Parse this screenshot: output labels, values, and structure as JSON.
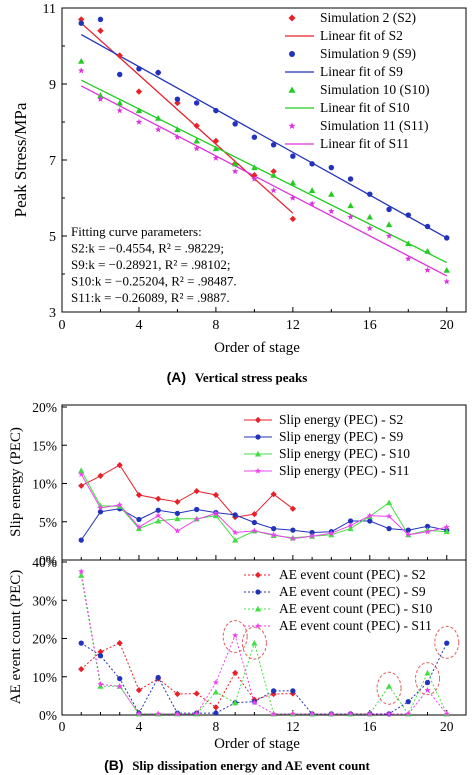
{
  "chart_data": [
    {
      "id": "A",
      "type": "scatter",
      "caption_label": "(A)",
      "caption": "Vertical stress peaks",
      "xlabel": "Order of stage",
      "ylabel": "Peak Stress/MPa",
      "xlim": [
        0,
        21
      ],
      "ylim": [
        3,
        11
      ],
      "xticks": [
        0,
        4,
        8,
        12,
        16,
        20
      ],
      "yticks": [
        3,
        5,
        7,
        9,
        11
      ],
      "legend_position": "top-right",
      "series": [
        {
          "name": "Simulation 2 (S2)",
          "color": "#e8202a",
          "marker": "diamond",
          "x": [
            1,
            2,
            3,
            4,
            5,
            6,
            7,
            8,
            9,
            10,
            11,
            12
          ],
          "y": [
            10.7,
            10.4,
            9.75,
            8.8,
            9.3,
            8.5,
            7.9,
            7.5,
            6.9,
            6.6,
            6.7,
            5.45
          ],
          "fit_name": "Linear fit of  S2",
          "fit": [
            [
              1,
              10.6
            ],
            [
              12,
              5.6
            ]
          ]
        },
        {
          "name": "Simulation 9 (S9)",
          "color": "#2233bb",
          "marker": "circle",
          "x": [
            1,
            2,
            3,
            4,
            5,
            6,
            7,
            8,
            9,
            10,
            11,
            12,
            13,
            14,
            15,
            16,
            17,
            18,
            19,
            20
          ],
          "y": [
            10.6,
            10.7,
            9.25,
            9.4,
            9.3,
            8.6,
            8.5,
            8.3,
            7.95,
            7.6,
            7.4,
            7.1,
            6.9,
            6.8,
            6.5,
            6.1,
            5.7,
            5.55,
            5.25,
            4.95
          ],
          "fit_name": "Linear fit of S9",
          "fit": [
            [
              1,
              10.3
            ],
            [
              20,
              4.95
            ]
          ]
        },
        {
          "name": "Simulation 10 (S10)",
          "color": "#22cc22",
          "marker": "triangle",
          "x": [
            1,
            2,
            3,
            4,
            5,
            6,
            7,
            8,
            9,
            10,
            11,
            12,
            13,
            14,
            15,
            16,
            17,
            18,
            19,
            20
          ],
          "y": [
            9.6,
            8.7,
            8.5,
            8.3,
            8.1,
            7.8,
            7.5,
            7.3,
            6.9,
            6.8,
            6.6,
            6.4,
            6.2,
            6.1,
            5.8,
            5.5,
            5.3,
            4.8,
            4.6,
            4.1
          ],
          "fit_name": "Linear fit of S10",
          "fit": [
            [
              1,
              9.1
            ],
            [
              20,
              4.3
            ]
          ]
        },
        {
          "name": "Simulation 11 (S11)",
          "color": "#dd33dd",
          "marker": "star",
          "x": [
            1,
            2,
            3,
            4,
            5,
            6,
            7,
            8,
            9,
            10,
            11,
            12,
            13,
            14,
            15,
            16,
            17,
            18,
            19,
            20
          ],
          "y": [
            9.35,
            8.6,
            8.3,
            8.0,
            7.8,
            7.6,
            7.3,
            7.05,
            6.7,
            6.5,
            6.2,
            6.0,
            5.85,
            5.65,
            5.5,
            5.2,
            5.0,
            4.4,
            4.1,
            3.8
          ],
          "fit_name": "Linear fit of S11",
          "fit": [
            [
              1,
              8.95
            ],
            [
              20,
              3.95
            ]
          ]
        }
      ],
      "annotation_lines": [
        "Fitting curve parameters:",
        "S2:k = −0.4554, R² = .98229;",
        "S9:k = −0.28921, R² = .98102;",
        "S10:k = −0.25204, R² = .98487.",
        "S11:k = −0.26089, R² = .9887."
      ]
    },
    {
      "id": "B",
      "type": "line",
      "caption_label": "(B)",
      "caption": "Slip dissipation energy and AE event count",
      "xlabel": "Order of stage",
      "xlim": [
        0,
        21
      ],
      "xticks": [
        0,
        4,
        8,
        12,
        16,
        20
      ],
      "panels": [
        {
          "ylabel": "Slip energy (PEC)",
          "ylim": [
            0,
            20
          ],
          "yticks": [
            "0%",
            "5%",
            "10%",
            "15%",
            "20%"
          ],
          "line_style": "solid",
          "legend_position": "top-right",
          "series": [
            {
              "name": "Slip energy (PEC) - S2",
              "color": "#e8202a",
              "marker": "diamond",
              "x": [
                1,
                2,
                3,
                4,
                5,
                6,
                7,
                8,
                9,
                10,
                11,
                12
              ],
              "y": [
                9.7,
                11.0,
                12.4,
                8.5,
                8.0,
                7.6,
                9.0,
                8.5,
                5.6,
                6.0,
                8.6,
                6.7
              ]
            },
            {
              "name": "Slip energy (PEC) - S9",
              "color": "#2233bb",
              "marker": "circle",
              "x": [
                1,
                2,
                3,
                4,
                5,
                6,
                7,
                8,
                9,
                10,
                11,
                12,
                13,
                14,
                15,
                16,
                17,
                18,
                19,
                20
              ],
              "y": [
                2.6,
                6.3,
                6.7,
                5.3,
                6.5,
                6.1,
                6.6,
                6.2,
                5.9,
                4.9,
                4.1,
                3.9,
                3.6,
                3.7,
                5.1,
                5.1,
                4.1,
                3.9,
                4.4,
                3.9
              ]
            },
            {
              "name": "Slip energy (PEC) - S10",
              "color": "#44dd44",
              "marker": "triangle",
              "x": [
                1,
                2,
                3,
                4,
                5,
                6,
                7,
                8,
                9,
                10,
                11,
                12,
                13,
                14,
                15,
                16,
                17,
                18,
                19,
                20
              ],
              "y": [
                11.7,
                7.1,
                7.0,
                4.1,
                5.1,
                5.4,
                5.4,
                5.8,
                2.6,
                3.8,
                3.2,
                2.9,
                3.1,
                3.3,
                4.1,
                5.7,
                7.5,
                3.3,
                3.9,
                3.7
              ]
            },
            {
              "name": "Slip energy (PEC) - S11",
              "color": "#ee44ee",
              "marker": "star",
              "x": [
                1,
                2,
                3,
                4,
                5,
                6,
                7,
                8,
                9,
                10,
                11,
                12,
                13,
                14,
                15,
                16,
                17,
                18,
                19,
                20
              ],
              "y": [
                11.2,
                6.8,
                7.2,
                4.3,
                5.8,
                3.8,
                5.3,
                6.1,
                3.6,
                3.8,
                3.3,
                2.8,
                3.1,
                3.5,
                4.5,
                5.8,
                5.7,
                3.3,
                3.7,
                4.3
              ]
            }
          ]
        },
        {
          "ylabel": "AE event count (PEC)",
          "ylim": [
            0,
            40
          ],
          "yticks": [
            "0%",
            "10%",
            "20%",
            "30%",
            "40%"
          ],
          "line_style": "dotted",
          "legend_position": "top-right",
          "series": [
            {
              "name": "AE event count (PEC) - S2",
              "color": "#e8202a",
              "marker": "diamond",
              "x": [
                1,
                2,
                3,
                4,
                5,
                6,
                7,
                8,
                9,
                10,
                11,
                12
              ],
              "y": [
                12.0,
                16.5,
                18.8,
                6.5,
                9.5,
                5.5,
                5.6,
                2.0,
                11.0,
                4.0,
                5.5,
                5.6
              ]
            },
            {
              "name": "AE event count (PEC) - S9",
              "color": "#2233bb",
              "marker": "circle",
              "x": [
                1,
                2,
                3,
                4,
                5,
                6,
                7,
                8,
                9,
                10,
                11,
                12,
                13,
                14,
                15,
                16,
                17,
                18,
                19,
                20
              ],
              "y": [
                18.8,
                15.5,
                9.5,
                0.5,
                9.8,
                0.5,
                0.5,
                0.5,
                3.2,
                3.5,
                6.3,
                6.3,
                0.3,
                0.3,
                0.3,
                0.3,
                0.3,
                3.5,
                8.5,
                18.8
              ]
            },
            {
              "name": "AE event count (PEC) - S10",
              "color": "#44dd44",
              "marker": "triangle",
              "x": [
                1,
                2,
                3,
                4,
                5,
                6,
                7,
                8,
                9,
                10,
                11,
                12,
                13,
                14,
                15,
                16,
                17,
                18,
                19,
                20
              ],
              "y": [
                36.5,
                7.5,
                7.5,
                0.3,
                0.3,
                0.3,
                0.3,
                6.0,
                3.2,
                18.8,
                0.3,
                0.3,
                0.3,
                0.3,
                0.3,
                0.3,
                7.5,
                0.3,
                11.0,
                0.3
              ]
            },
            {
              "name": "AE event count (PEC) - S11",
              "color": "#ee44ee",
              "marker": "star",
              "x": [
                1,
                2,
                3,
                4,
                5,
                6,
                7,
                8,
                9,
                10,
                11,
                12,
                13,
                14,
                15,
                16,
                17,
                18,
                19,
                20
              ],
              "y": [
                37.5,
                8.0,
                7.5,
                0.3,
                0.3,
                0.3,
                0.3,
                8.5,
                20.8,
                3.2,
                0.3,
                0.3,
                0.3,
                0.3,
                0.3,
                0.3,
                0.3,
                0.3,
                6.5,
                0.3
              ]
            }
          ],
          "highlights": [
            {
              "x": 9,
              "y": 20.5
            },
            {
              "x": 10,
              "y": 18.8
            },
            {
              "x": 17,
              "y": 7.0
            },
            {
              "x": 19,
              "y": 9.5
            },
            {
              "x": 20,
              "y": 19.0
            }
          ]
        }
      ]
    }
  ]
}
